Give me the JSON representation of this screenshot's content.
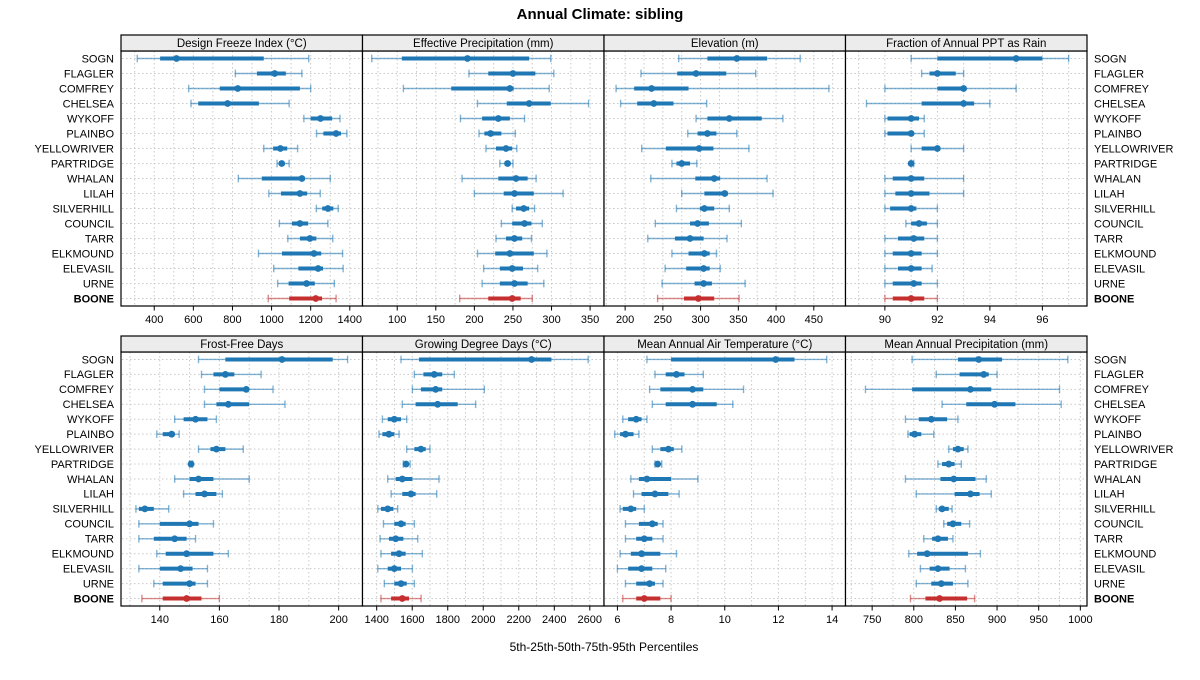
{
  "title": "Annual Climate: sibling",
  "caption": "5th-25th-50th-75th-95th Percentiles",
  "colors": {
    "series": "#1f77b4",
    "highlight": "#c62f2f",
    "strip_bg": "#ececec",
    "grid": "#c9c9c9",
    "border": "#000000"
  },
  "sites": [
    "SOGN",
    "FLAGLER",
    "COMFREY",
    "CHELSEA",
    "WYKOFF",
    "PLAINBO",
    "YELLOWRIVER",
    "PARTRIDGE",
    "WHALAN",
    "LILAH",
    "SILVERHILL",
    "COUNCIL",
    "TARR",
    "ELKMOUND",
    "ELEVASIL",
    "URNE",
    "BOONE"
  ],
  "highlight_site": "BOONE",
  "chart_data": {
    "type": "dotplot-percentiles",
    "percentile_labels": [
      "5th",
      "25th",
      "50th",
      "75th",
      "95th"
    ],
    "panels": [
      {
        "title": "Design Freeze Index (°C)",
        "row": 0,
        "col": 0,
        "xlim": [
          230,
          1465
        ],
        "ticks": [
          400,
          600,
          800,
          1000,
          1200,
          1400
        ],
        "grid_step": 100,
        "values": [
          [
            313,
            430,
            514,
            960,
            1190
          ],
          [
            815,
            925,
            1016,
            1073,
            1155
          ],
          [
            576,
            735,
            827,
            1145,
            1200
          ],
          [
            588,
            625,
            775,
            935,
            1090
          ],
          [
            1165,
            1200,
            1250,
            1310,
            1350
          ],
          [
            1230,
            1265,
            1330,
            1355,
            1385
          ],
          [
            960,
            1008,
            1045,
            1080,
            1133
          ],
          [
            1028,
            1041,
            1052,
            1065,
            1090
          ],
          [
            830,
            950,
            1155,
            1165,
            1300
          ],
          [
            986,
            1048,
            1145,
            1182,
            1249
          ],
          [
            1229,
            1259,
            1288,
            1316,
            1341
          ],
          [
            1040,
            1104,
            1145,
            1187,
            1288
          ],
          [
            1083,
            1145,
            1196,
            1229,
            1313
          ],
          [
            933,
            1053,
            1217,
            1254,
            1363
          ],
          [
            1011,
            1137,
            1238,
            1263,
            1366
          ],
          [
            1031,
            1087,
            1179,
            1221,
            1321
          ],
          [
            983,
            1090,
            1226,
            1258,
            1330
          ]
        ]
      },
      {
        "title": "Effective Precipitation (mm)",
        "row": 0,
        "col": 1,
        "xlim": [
          55,
          368
        ],
        "ticks": [
          100,
          150,
          200,
          250,
          300,
          350
        ],
        "grid_step": 25,
        "values": [
          [
            67,
            106,
            191,
            271,
            299
          ],
          [
            193,
            218,
            250,
            279,
            303
          ],
          [
            108,
            170,
            246,
            251,
            297
          ],
          [
            204,
            242,
            271,
            299,
            348
          ],
          [
            182,
            210,
            231,
            246,
            265
          ],
          [
            206,
            213,
            221,
            235,
            253
          ],
          [
            215,
            228,
            241,
            249,
            255
          ],
          [
            233,
            239,
            243,
            247,
            250
          ],
          [
            184,
            231,
            254,
            269,
            280
          ],
          [
            200,
            238,
            252,
            277,
            315
          ],
          [
            249,
            254,
            264,
            271,
            278
          ],
          [
            235,
            249,
            265,
            274,
            288
          ],
          [
            228,
            241,
            252,
            262,
            274
          ],
          [
            204,
            227,
            246,
            277,
            294
          ],
          [
            212,
            233,
            249,
            263,
            282
          ],
          [
            210,
            233,
            252,
            269,
            290
          ],
          [
            181,
            218,
            249,
            260,
            275
          ]
        ]
      },
      {
        "title": "Elevation (m)",
        "row": 0,
        "col": 2,
        "xlim": [
          172,
          492
        ],
        "ticks": [
          200,
          250,
          300,
          350,
          400,
          450
        ],
        "grid_step": 25,
        "values": [
          [
            271,
            309,
            348,
            388,
            432
          ],
          [
            221,
            269,
            294,
            334,
            373
          ],
          [
            188,
            212,
            235,
            284,
            470
          ],
          [
            194,
            216,
            238,
            264,
            308
          ],
          [
            294,
            309,
            338,
            381,
            409
          ],
          [
            283,
            296,
            309,
            321,
            348
          ],
          [
            222,
            254,
            298,
            317,
            364
          ],
          [
            262,
            268,
            275,
            286,
            295
          ],
          [
            234,
            293,
            318,
            326,
            388
          ],
          [
            275,
            305,
            332,
            336,
            396
          ],
          [
            268,
            299,
            305,
            318,
            338
          ],
          [
            240,
            286,
            296,
            311,
            354
          ],
          [
            230,
            266,
            286,
            304,
            335
          ],
          [
            262,
            284,
            305,
            312,
            321
          ],
          [
            253,
            281,
            304,
            312,
            326
          ],
          [
            249,
            292,
            304,
            315,
            359
          ],
          [
            243,
            278,
            297,
            318,
            351
          ]
        ]
      },
      {
        "title": "Fraction of Annual PPT as Rain",
        "row": 0,
        "col": 3,
        "xlim": [
          88.5,
          97.7
        ],
        "ticks": [
          90,
          92,
          94,
          96
        ],
        "grid_step": 1,
        "values": [
          [
            91,
            92,
            95,
            96,
            97
          ],
          [
            91.4,
            91.7,
            92,
            92.7,
            93
          ],
          [
            90,
            92,
            93,
            93.1,
            95
          ],
          [
            89.3,
            91.4,
            93,
            93.4,
            94
          ],
          [
            90,
            90.1,
            91,
            91.3,
            91.5
          ],
          [
            90,
            90.1,
            91,
            91,
            91.5
          ],
          [
            91,
            91.4,
            92,
            92.1,
            93
          ],
          [
            91,
            91,
            91,
            91,
            91.1
          ],
          [
            90,
            90.3,
            91,
            91.5,
            93
          ],
          [
            90,
            90.4,
            91,
            91.7,
            93
          ],
          [
            90,
            90.2,
            91,
            91.2,
            92
          ],
          [
            90.8,
            91,
            91.3,
            91.6,
            92
          ],
          [
            90,
            90.5,
            91.1,
            91.5,
            92
          ],
          [
            90,
            90.3,
            91,
            91.4,
            92
          ],
          [
            90,
            90.5,
            91,
            91.4,
            91.8
          ],
          [
            90,
            90.3,
            91.1,
            91.4,
            92
          ],
          [
            90,
            90.3,
            91,
            91.5,
            92
          ]
        ]
      },
      {
        "title": "Frost-Free Days",
        "row": 1,
        "col": 0,
        "xlim": [
          127,
          208
        ],
        "ticks": [
          140,
          160,
          180,
          200
        ],
        "grid_step": 10,
        "values": [
          [
            153,
            162,
            181,
            198,
            203
          ],
          [
            154,
            158,
            162,
            165,
            174
          ],
          [
            155,
            160,
            169,
            170,
            178
          ],
          [
            155,
            159,
            163,
            170,
            182
          ],
          [
            145,
            148,
            152,
            156,
            159
          ],
          [
            139,
            141,
            144,
            145,
            146.5
          ],
          [
            153,
            157,
            159,
            162,
            168
          ],
          [
            150,
            150.2,
            150.5,
            150.8,
            151
          ],
          [
            145,
            150,
            153,
            158,
            170
          ],
          [
            148,
            152,
            155,
            159,
            161
          ],
          [
            132,
            133,
            135,
            138,
            143
          ],
          [
            133,
            140,
            150,
            153,
            158
          ],
          [
            133,
            138,
            145,
            149,
            152
          ],
          [
            139,
            142,
            149,
            158,
            163
          ],
          [
            133,
            140,
            147,
            151,
            156
          ],
          [
            138,
            141,
            150,
            152,
            156
          ],
          [
            134,
            141,
            149,
            154,
            160
          ]
        ]
      },
      {
        "title": "Growing Degree Days (°C)",
        "row": 1,
        "col": 1,
        "xlim": [
          1320,
          2680
        ],
        "ticks": [
          1400,
          1600,
          1800,
          2000,
          2200,
          2400,
          2600
        ],
        "grid_step": 100,
        "values": [
          [
            1537,
            1638,
            2272,
            2384,
            2591
          ],
          [
            1612,
            1663,
            1724,
            1769,
            1837
          ],
          [
            1601,
            1649,
            1732,
            1769,
            2006
          ],
          [
            1544,
            1619,
            1743,
            1856,
            1957
          ],
          [
            1432,
            1462,
            1499,
            1537,
            1569
          ],
          [
            1413,
            1432,
            1469,
            1499,
            1526
          ],
          [
            1569,
            1612,
            1649,
            1676,
            1700
          ],
          [
            1550,
            1556,
            1565,
            1578,
            1588
          ],
          [
            1462,
            1507,
            1544,
            1601,
            1751
          ],
          [
            1481,
            1544,
            1593,
            1619,
            1738
          ],
          [
            1406,
            1424,
            1462,
            1494,
            1518
          ],
          [
            1438,
            1499,
            1537,
            1563,
            1612
          ],
          [
            1419,
            1469,
            1507,
            1550,
            1631
          ],
          [
            1424,
            1481,
            1526,
            1563,
            1657
          ],
          [
            1406,
            1462,
            1499,
            1537,
            1601
          ],
          [
            1443,
            1499,
            1537,
            1569,
            1612
          ],
          [
            1424,
            1481,
            1544,
            1582,
            1650
          ]
        ]
      },
      {
        "title": "Mean Annual Air Temperature (°C)",
        "row": 1,
        "col": 2,
        "xlim": [
          5.5,
          14.5
        ],
        "ticks": [
          6,
          8,
          10,
          12,
          14
        ],
        "grid_step": 1,
        "values": [
          [
            7.1,
            8.0,
            11.9,
            12.6,
            13.8
          ],
          [
            7.4,
            7.8,
            8.2,
            8.5,
            9.2
          ],
          [
            7.2,
            7.6,
            8.8,
            9.2,
            10.7
          ],
          [
            7.3,
            7.8,
            8.8,
            9.7,
            10.3
          ],
          [
            6.2,
            6.4,
            6.7,
            6.9,
            7.1
          ],
          [
            5.9,
            6.1,
            6.3,
            6.6,
            6.8
          ],
          [
            7.3,
            7.6,
            7.9,
            8.1,
            8.4
          ],
          [
            7.4,
            7.45,
            7.5,
            7.6,
            7.65
          ],
          [
            6.5,
            6.8,
            7.1,
            8.0,
            9.0
          ],
          [
            6.6,
            6.9,
            7.4,
            7.9,
            8.3
          ],
          [
            6.1,
            6.2,
            6.5,
            6.7,
            7.0
          ],
          [
            6.3,
            6.8,
            7.3,
            7.5,
            7.7
          ],
          [
            6.3,
            6.7,
            7.0,
            7.3,
            7.7
          ],
          [
            6.1,
            6.5,
            6.9,
            7.6,
            8.2
          ],
          [
            6.0,
            6.4,
            6.9,
            7.3,
            7.8
          ],
          [
            6.3,
            6.7,
            7.2,
            7.4,
            7.7
          ],
          [
            6.2,
            6.7,
            7.0,
            7.6,
            8.0
          ]
        ]
      },
      {
        "title": "Mean Annual Precipitation (mm)",
        "row": 1,
        "col": 3,
        "xlim": [
          718,
          1008
        ],
        "ticks": [
          750,
          800,
          850,
          900,
          950,
          1000
        ],
        "grid_step": 25,
        "values": [
          [
            798,
            853,
            878,
            906,
            985
          ],
          [
            827,
            855,
            884,
            890,
            900
          ],
          [
            742,
            798,
            868,
            893,
            975
          ],
          [
            834,
            863,
            897,
            922,
            977
          ],
          [
            790,
            806,
            821,
            840,
            853
          ],
          [
            793,
            795,
            801,
            809,
            824
          ],
          [
            842,
            847,
            853,
            860,
            865
          ],
          [
            829,
            834,
            842,
            849,
            857
          ],
          [
            790,
            832,
            848,
            874,
            887
          ],
          [
            803,
            849,
            868,
            879,
            893
          ],
          [
            827,
            830,
            834,
            842,
            846
          ],
          [
            836,
            840,
            847,
            857,
            867
          ],
          [
            812,
            822,
            829,
            841,
            847
          ],
          [
            794,
            804,
            816,
            865,
            880
          ],
          [
            808,
            819,
            829,
            843,
            862
          ],
          [
            803,
            821,
            833,
            847,
            865
          ],
          [
            796,
            814,
            831,
            864,
            873
          ]
        ]
      }
    ]
  }
}
